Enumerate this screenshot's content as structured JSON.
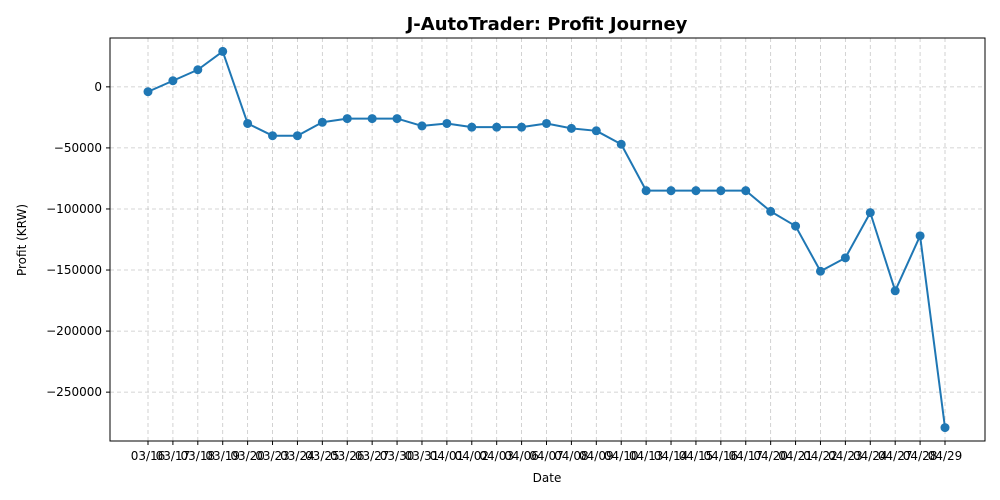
{
  "chart_data": {
    "type": "line",
    "title": "J-AutoTrader: Profit Journey",
    "xlabel": "Date",
    "ylabel": "Profit (KRW)",
    "grid": true,
    "color": "#1f77b4",
    "x": [
      "03/16",
      "03/17",
      "03/18",
      "03/19",
      "03/20",
      "03/23",
      "03/24",
      "03/25",
      "03/26",
      "03/27",
      "03/30",
      "03/31",
      "04/01",
      "04/02",
      "04/03",
      "04/06",
      "04/07",
      "04/08",
      "04/09",
      "04/10",
      "04/13",
      "04/14",
      "04/15",
      "04/16",
      "04/17",
      "04/20",
      "04/21",
      "04/22",
      "04/23",
      "04/24",
      "04/27",
      "04/28",
      "04/29"
    ],
    "values": [
      -4000,
      5000,
      14000,
      29000,
      -30000,
      -40000,
      -40000,
      -29000,
      -26000,
      -26000,
      -26000,
      -32000,
      -30000,
      -33000,
      -33000,
      -33000,
      -30000,
      -34000,
      -36000,
      -47000,
      -85000,
      -85000,
      -85000,
      -85000,
      -85000,
      -102000,
      -114000,
      -151000,
      -140000,
      -103000,
      -167000,
      -122000,
      -279000
    ],
    "yticks": [
      0,
      -50000,
      -100000,
      -150000,
      -200000,
      -250000
    ],
    "ytick_labels": [
      "0",
      "−50000",
      "−100000",
      "−150000",
      "−200000",
      "−250000"
    ],
    "ylim": [
      -290000,
      40000
    ]
  }
}
